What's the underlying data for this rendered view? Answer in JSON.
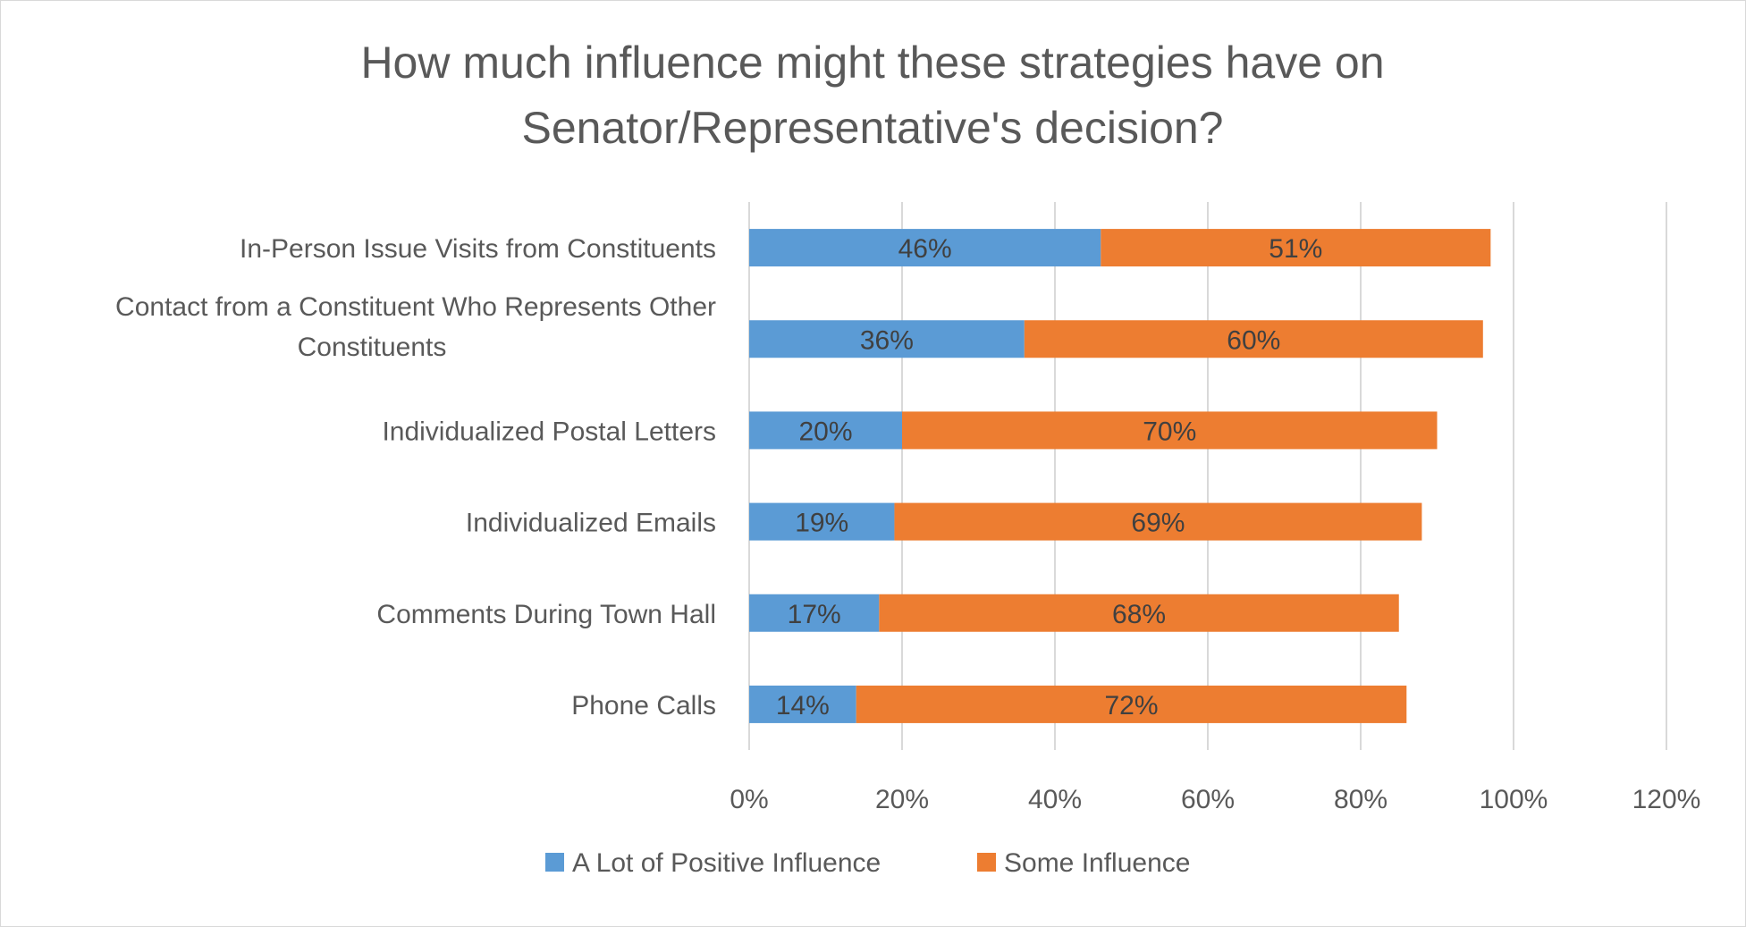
{
  "chart_data": {
    "type": "bar",
    "orientation": "horizontal",
    "stacked": true,
    "title": "How much influence might these strategies have on Senator/Representative's decision?",
    "title_lines": [
      "How much influence might these strategies have on",
      "Senator/Representative's decision?"
    ],
    "categories": [
      "In-Person Issue Visits from Constituents",
      "Contact from a Constituent Who Represents Other Constituents",
      "Individualized Postal Letters",
      "Individualized Emails",
      "Comments During Town Hall",
      "Phone Calls"
    ],
    "category_lines": [
      [
        "In-Person Issue Visits from Constituents"
      ],
      [
        "Contact from a Constituent Who Represents Other",
        "Constituents"
      ],
      [
        "Individualized Postal Letters"
      ],
      [
        "Individualized Emails"
      ],
      [
        "Comments During Town Hall"
      ],
      [
        "Phone Calls"
      ]
    ],
    "series": [
      {
        "name": "A Lot of Positive Influence",
        "color": "#5b9bd5",
        "values": [
          46,
          36,
          20,
          19,
          17,
          14
        ],
        "labels": [
          "46%",
          "36%",
          "20%",
          "19%",
          "17%",
          "14%"
        ]
      },
      {
        "name": "Some Influence",
        "color": "#ed7d31",
        "values": [
          51,
          60,
          70,
          69,
          68,
          72
        ],
        "labels": [
          "51%",
          "60%",
          "70%",
          "69%",
          "68%",
          "72%"
        ]
      }
    ],
    "xlim": [
      0,
      120
    ],
    "x_ticks": [
      0,
      20,
      40,
      60,
      80,
      100,
      120
    ],
    "x_tick_labels": [
      "0%",
      "20%",
      "40%",
      "60%",
      "80%",
      "100%",
      "120%"
    ],
    "xlabel": "",
    "ylabel": "",
    "grid": "vertical",
    "legend_position": "bottom"
  }
}
